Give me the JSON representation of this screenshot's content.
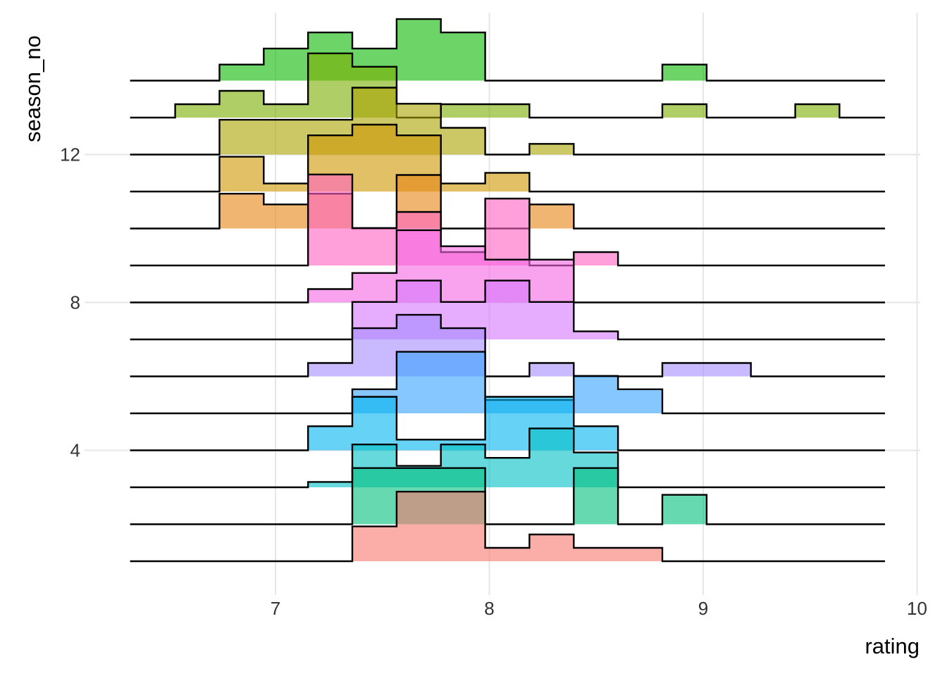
{
  "chart_data": {
    "type": "ridgeline-histogram",
    "xlabel": "rating",
    "ylabel": "season_no",
    "xlim": [
      6.32,
      9.85
    ],
    "x_ticks": [
      7,
      8,
      9,
      10
    ],
    "y_ticks": [
      4,
      8,
      12
    ],
    "grid": true,
    "legend": "none",
    "bin_width": 0.2071,
    "bin_start": 6.3237,
    "series": [
      {
        "season": 1,
        "color": "#F8766D",
        "heights": [
          0,
          0,
          0,
          0,
          0,
          0.13,
          0.26,
          0.26,
          0.05,
          0.1,
          0.05,
          0.05,
          0,
          0,
          0,
          0,
          0
        ]
      },
      {
        "season": 2,
        "color": "#00BF7D",
        "heights": [
          0,
          0,
          0,
          0,
          0,
          0.21,
          0.21,
          0.21,
          0,
          0,
          0.21,
          0,
          0.11,
          0,
          0,
          0,
          0
        ]
      },
      {
        "season": 3,
        "color": "#00BFC4",
        "heights": [
          0,
          0,
          0,
          0,
          0.02,
          0.16,
          0.08,
          0.16,
          0.11,
          0.22,
          0.13,
          0,
          0,
          0,
          0,
          0,
          0
        ]
      },
      {
        "season": 4,
        "color": "#00B4EF",
        "heights": [
          0,
          0,
          0,
          0,
          0.09,
          0.2,
          0.04,
          0.04,
          0.2,
          0.2,
          0.09,
          0,
          0,
          0,
          0,
          0,
          0
        ]
      },
      {
        "season": 5,
        "color": "#35A2FF",
        "heights": [
          0,
          0,
          0,
          0,
          0,
          0.09,
          0.23,
          0.23,
          0.05,
          0.05,
          0.14,
          0.09,
          0,
          0,
          0,
          0,
          0
        ]
      },
      {
        "season": 6,
        "color": "#A58AFF",
        "heights": [
          0,
          0,
          0,
          0,
          0.05,
          0.18,
          0.23,
          0.18,
          0,
          0.05,
          0,
          0,
          0.05,
          0.05,
          0,
          0,
          0
        ]
      },
      {
        "season": 7,
        "color": "#D575FE",
        "heights": [
          0,
          0,
          0,
          0,
          0,
          0.14,
          0.22,
          0.14,
          0.22,
          0.14,
          0.03,
          0,
          0,
          0,
          0,
          0,
          0
        ]
      },
      {
        "season": 8,
        "color": "#F564E3",
        "heights": [
          0,
          0,
          0,
          0,
          0.05,
          0.11,
          0.27,
          0.21,
          0.16,
          0.16,
          0,
          0,
          0,
          0,
          0,
          0,
          0
        ]
      },
      {
        "season": 9,
        "color": "#FF61C3",
        "heights": [
          0,
          0,
          0,
          0,
          0.34,
          0.14,
          0.2,
          0.05,
          0.25,
          0,
          0.05,
          0,
          0,
          0,
          0,
          0,
          0
        ]
      },
      {
        "season": 10,
        "color": "#E68613",
        "heights": [
          0,
          0,
          0.13,
          0.09,
          0.13,
          0,
          0.2,
          0,
          0,
          0.09,
          0,
          0,
          0,
          0,
          0,
          0,
          0
        ]
      },
      {
        "season": 11,
        "color": "#CD9600",
        "heights": [
          0,
          0,
          0.13,
          0.03,
          0.21,
          0.25,
          0.21,
          0.03,
          0.07,
          0,
          0,
          0,
          0,
          0,
          0,
          0,
          0
        ]
      },
      {
        "season": 12,
        "color": "#ABA300",
        "heights": [
          0,
          0,
          0.13,
          0.13,
          0.13,
          0.25,
          0.19,
          0.1,
          0,
          0.04,
          0,
          0,
          0,
          0,
          0,
          0,
          0
        ]
      },
      {
        "season": 13,
        "color": "#7CAE00",
        "heights": [
          0,
          0.05,
          0.1,
          0.05,
          0.24,
          0.19,
          0,
          0.05,
          0.05,
          0,
          0,
          0,
          0.05,
          0,
          0,
          0.05,
          0
        ]
      },
      {
        "season": 14,
        "color": "#0CB702",
        "heights": [
          0,
          0,
          0.06,
          0.12,
          0.18,
          0.12,
          0.23,
          0.18,
          0,
          0,
          0,
          0,
          0.06,
          0,
          0,
          0,
          0
        ]
      }
    ]
  }
}
